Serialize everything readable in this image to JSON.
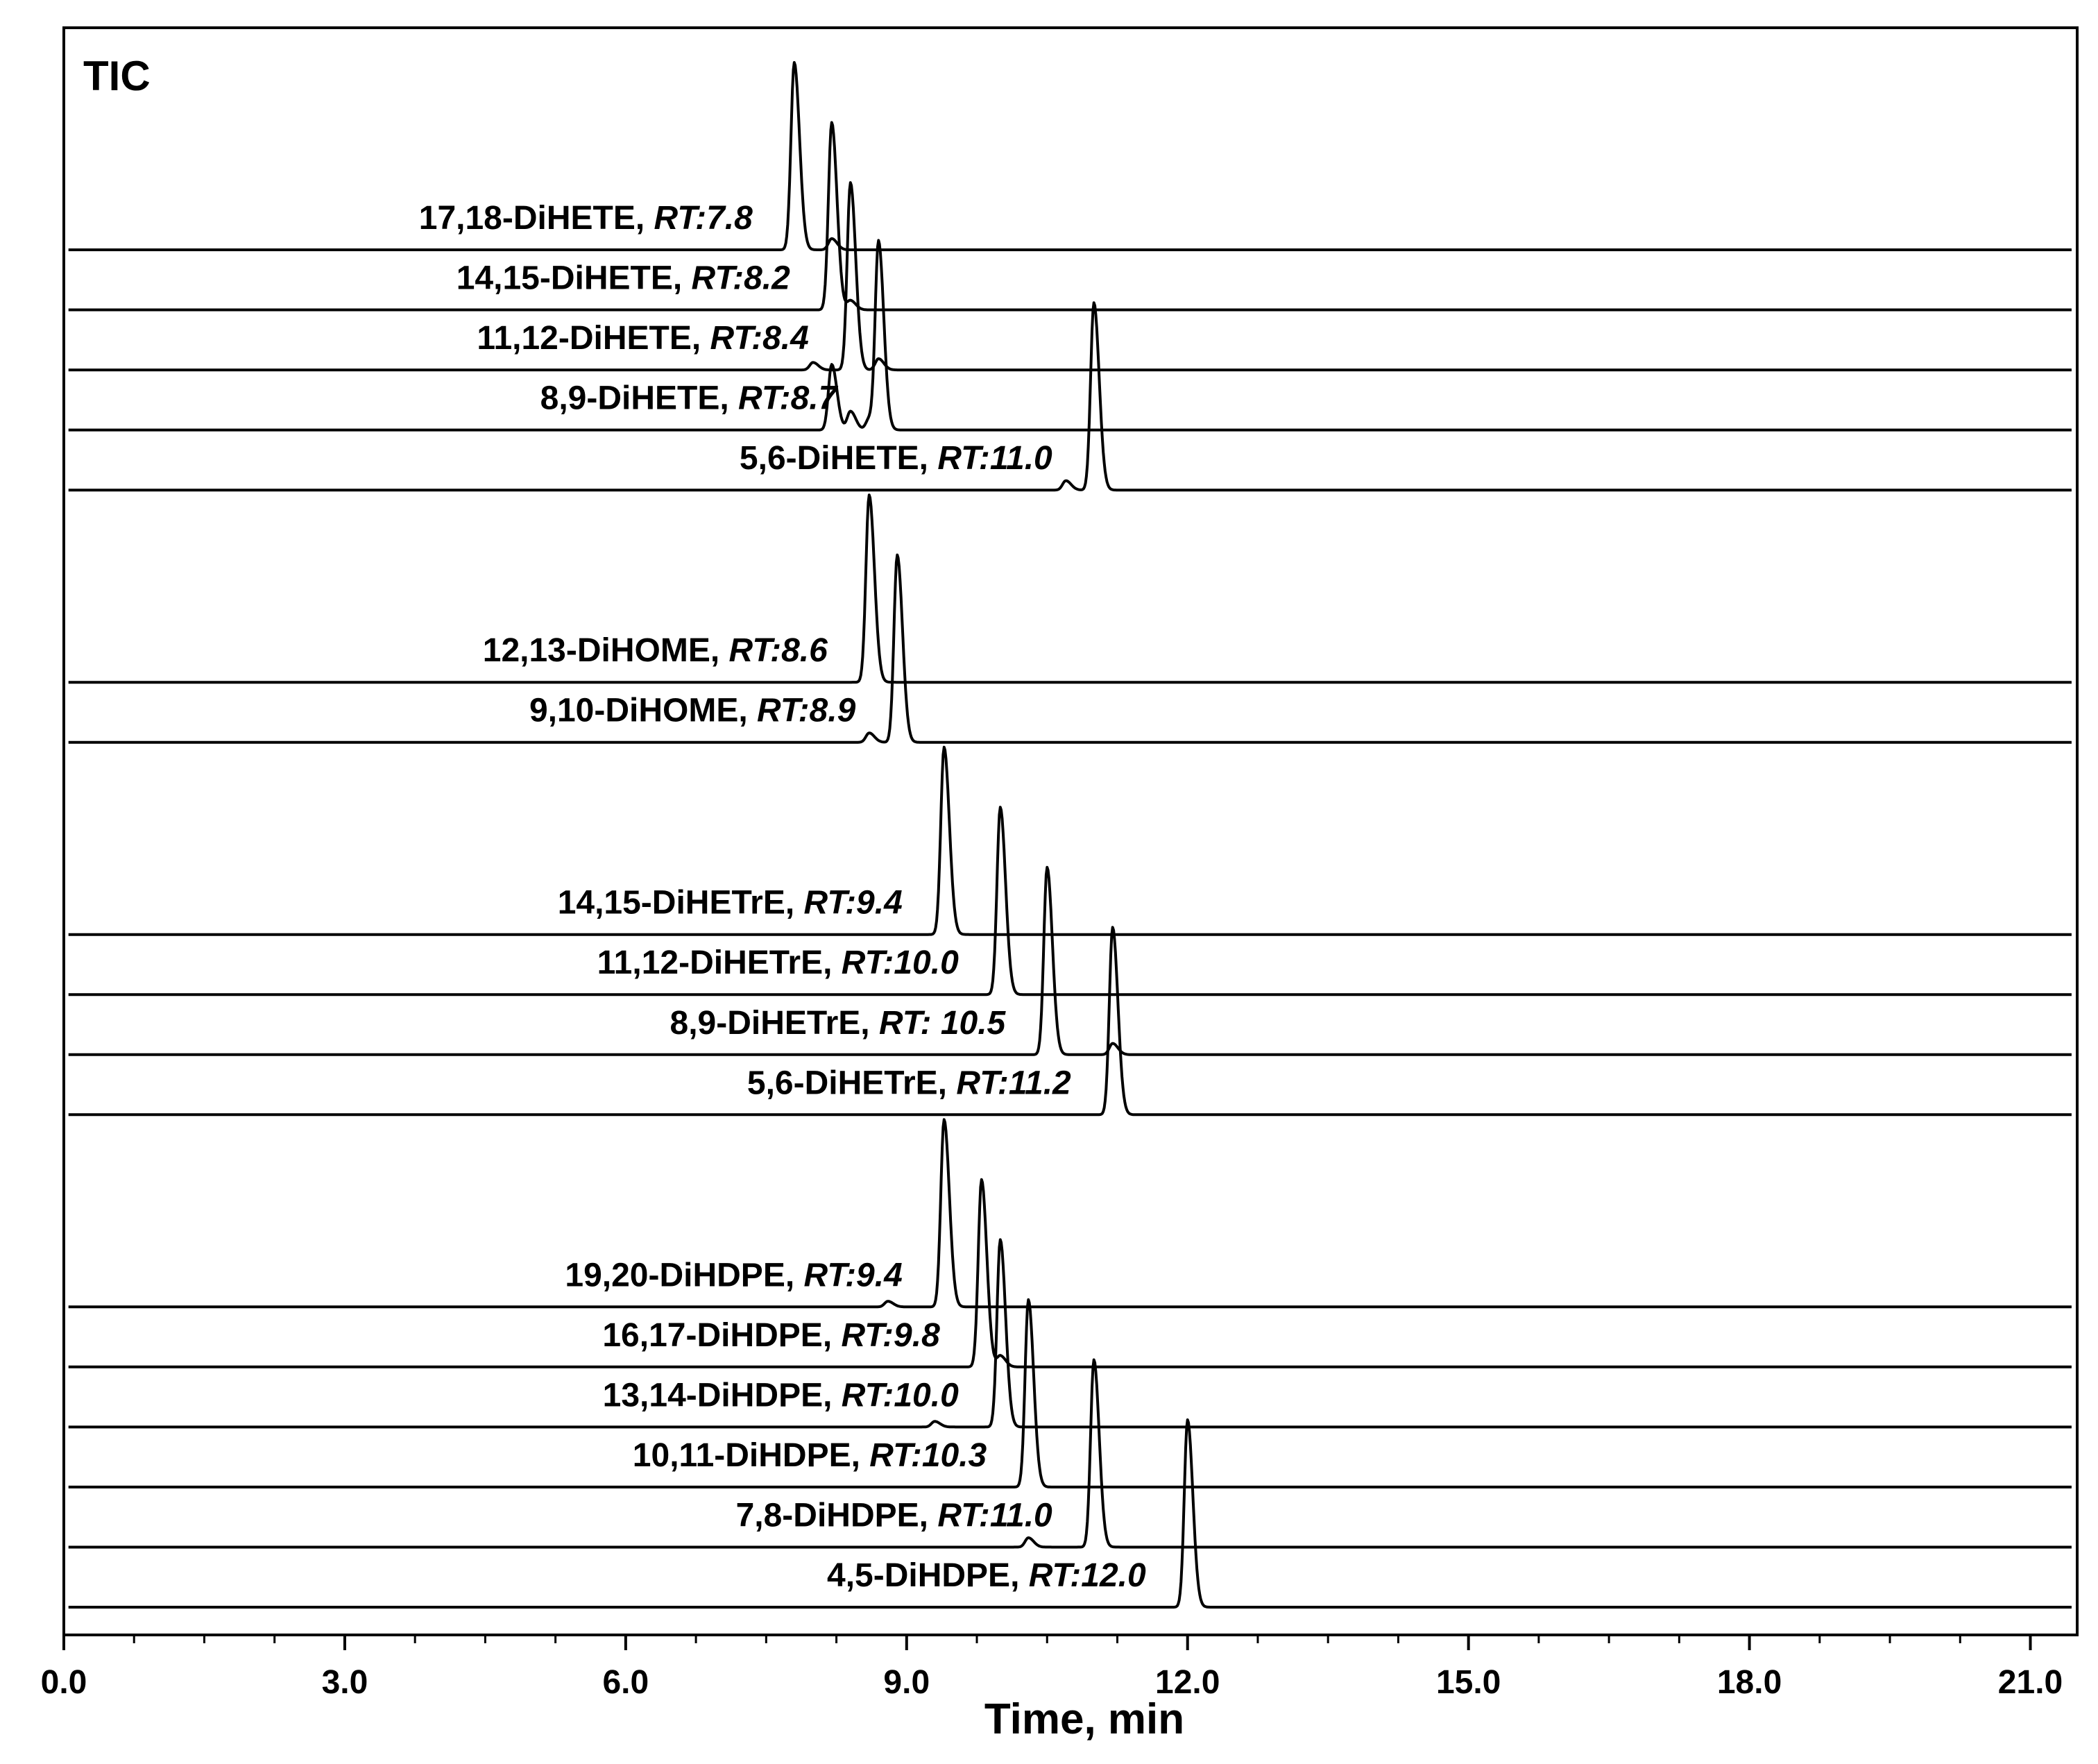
{
  "chart_data": {
    "type": "line",
    "panel_label": "TIC",
    "xlabel": "Time, min",
    "xlim": [
      0.0,
      21.5
    ],
    "x_ticks": [
      "0.0",
      "3.0",
      "6.0",
      "9.0",
      "12.0",
      "15.0",
      "18.0",
      "21.0"
    ],
    "x_tick_values": [
      0,
      3,
      6,
      9,
      12,
      15,
      18,
      21
    ],
    "x_minor_tick_values": [
      0.75,
      1.5,
      2.25,
      3.75,
      4.5,
      5.25,
      6.75,
      7.5,
      8.25,
      9.75,
      10.5,
      11.25,
      12.75,
      13.5,
      14.25,
      15.75,
      16.5,
      17.25,
      18.75,
      19.5,
      20.25,
      21.0
    ],
    "series": [
      {
        "name": "17,18-DiHETE",
        "rt_label": "RT:7.8",
        "peak_rt": 7.8,
        "peak_height": 1.0,
        "group": 0,
        "secondary_peaks": [
          {
            "rt": 8.2,
            "height": 0.06
          }
        ]
      },
      {
        "name": "14,15-DiHETE",
        "rt_label": "RT:8.2",
        "peak_rt": 8.2,
        "peak_height": 1.0,
        "group": 0,
        "secondary_peaks": [
          {
            "rt": 8.4,
            "height": 0.05
          }
        ]
      },
      {
        "name": "11,12-DiHETE",
        "rt_label": "RT:8.4",
        "peak_rt": 8.4,
        "peak_height": 1.0,
        "group": 0,
        "secondary_peaks": [
          {
            "rt": 8.0,
            "height": 0.04
          },
          {
            "rt": 8.7,
            "height": 0.06
          }
        ]
      },
      {
        "name": "8,9-DiHETE",
        "rt_label": "RT:8.7",
        "peak_rt": 8.7,
        "peak_height": 1.0,
        "group": 0,
        "secondary_peaks": [
          {
            "rt": 8.2,
            "height": 0.35
          },
          {
            "rt": 8.4,
            "height": 0.1
          },
          {
            "rt": 8.6,
            "height": 0.06
          }
        ]
      },
      {
        "name": "5,6-DiHETE",
        "rt_label": "RT:11.0",
        "peak_rt": 11.0,
        "peak_height": 1.0,
        "group": 0,
        "secondary_peaks": [
          {
            "rt": 10.7,
            "height": 0.05
          }
        ]
      },
      {
        "name": "12,13-DiHOME",
        "rt_label": "RT:8.6",
        "peak_rt": 8.6,
        "peak_height": 1.0,
        "group": 1,
        "secondary_peaks": []
      },
      {
        "name": "9,10-DiHOME",
        "rt_label": "RT:8.9",
        "peak_rt": 8.9,
        "peak_height": 1.0,
        "group": 1,
        "secondary_peaks": [
          {
            "rt": 8.6,
            "height": 0.05
          }
        ]
      },
      {
        "name": "14,15-DiHETrE",
        "rt_label": "RT:9.4",
        "peak_rt": 9.4,
        "peak_height": 1.0,
        "group": 2,
        "secondary_peaks": []
      },
      {
        "name": "11,12-DiHETrE",
        "rt_label": "RT:10.0",
        "peak_rt": 10.0,
        "peak_height": 1.0,
        "group": 2,
        "secondary_peaks": []
      },
      {
        "name": "8,9-DiHETrE",
        "rt_label": "RT: 10.5",
        "peak_rt": 10.5,
        "peak_height": 1.0,
        "group": 2,
        "secondary_peaks": [
          {
            "rt": 11.2,
            "height": 0.06
          }
        ]
      },
      {
        "name": "5,6-DiHETrE",
        "rt_label": "RT:11.2",
        "peak_rt": 11.2,
        "peak_height": 1.0,
        "group": 2,
        "secondary_peaks": []
      },
      {
        "name": "19,20-DiHDPE",
        "rt_label": "RT:9.4",
        "peak_rt": 9.4,
        "peak_height": 1.0,
        "group": 3,
        "secondary_peaks": [
          {
            "rt": 8.8,
            "height": 0.03
          }
        ]
      },
      {
        "name": "16,17-DiHDPE",
        "rt_label": "RT:9.8",
        "peak_rt": 9.8,
        "peak_height": 1.0,
        "group": 3,
        "secondary_peaks": [
          {
            "rt": 10.0,
            "height": 0.06
          }
        ]
      },
      {
        "name": "13,14-DiHDPE",
        "rt_label": "RT:10.0",
        "peak_rt": 10.0,
        "peak_height": 1.0,
        "group": 3,
        "secondary_peaks": [
          {
            "rt": 9.3,
            "height": 0.03
          }
        ]
      },
      {
        "name": "10,11-DiHDPE",
        "rt_label": "RT:10.3",
        "peak_rt": 10.3,
        "peak_height": 1.0,
        "group": 3,
        "secondary_peaks": []
      },
      {
        "name": "7,8-DiHDPE",
        "rt_label": "RT:11.0",
        "peak_rt": 11.0,
        "peak_height": 1.0,
        "group": 3,
        "secondary_peaks": [
          {
            "rt": 10.3,
            "height": 0.05
          }
        ]
      },
      {
        "name": "4,5-DiHDPE",
        "rt_label": "RT:12.0",
        "peak_rt": 12.0,
        "peak_height": 1.0,
        "group": 3,
        "secondary_peaks": []
      }
    ],
    "grid": false,
    "legend": "none"
  }
}
